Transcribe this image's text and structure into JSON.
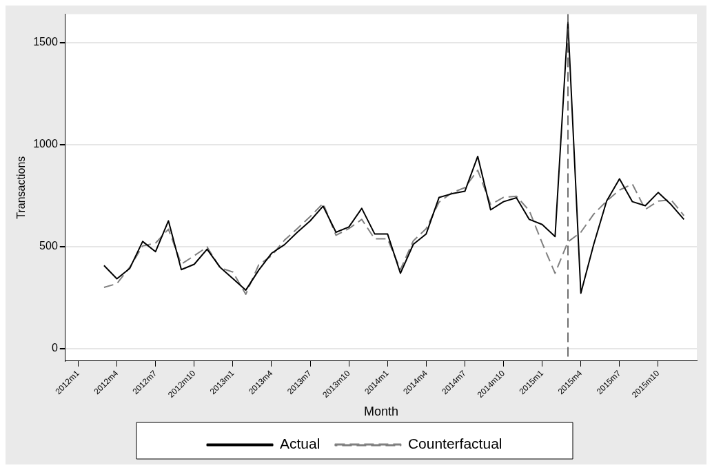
{
  "chart_data": {
    "type": "line",
    "xlabel": "Month",
    "ylabel": "Transactions",
    "x": [
      "2012-03",
      "2012-04",
      "2012-05",
      "2012-06",
      "2012-07",
      "2012-08",
      "2012-09",
      "2012-10",
      "2012-11",
      "2012-12",
      "2013-01",
      "2013-02",
      "2013-03",
      "2013-04",
      "2013-05",
      "2013-06",
      "2013-07",
      "2013-08",
      "2013-09",
      "2013-10",
      "2013-11",
      "2013-12",
      "2014-01",
      "2014-02",
      "2014-03",
      "2014-04",
      "2014-05",
      "2014-06",
      "2014-07",
      "2014-08",
      "2014-09",
      "2014-10",
      "2014-11",
      "2014-12",
      "2015-01",
      "2015-02",
      "2015-03",
      "2015-04",
      "2015-05",
      "2015-06",
      "2015-07",
      "2015-08",
      "2015-09",
      "2015-10",
      "2015-11",
      "2015-12"
    ],
    "series": [
      {
        "name": "Actual",
        "color": "#000000",
        "line_style": "solid",
        "values": [
          408,
          343,
          394,
          526,
          476,
          627,
          388,
          414,
          488,
          400,
          344,
          287,
          385,
          468,
          510,
          571,
          627,
          699,
          571,
          597,
          688,
          563,
          563,
          370,
          512,
          563,
          742,
          760,
          772,
          943,
          681,
          721,
          740,
          634,
          609,
          550,
          1600,
          272,
          512,
          724,
          833,
          721,
          701,
          766,
          707,
          634
        ]
      },
      {
        "name": "Counterfactual",
        "color": "#808080",
        "line_style": "dashed",
        "values": [
          301,
          319,
          400,
          504,
          518,
          586,
          415,
          456,
          499,
          397,
          376,
          267,
          411,
          456,
          532,
          589,
          648,
          713,
          556,
          589,
          634,
          539,
          539,
          388,
          529,
          589,
          719,
          765,
          790,
          875,
          707,
          742,
          748,
          677,
          518,
          370,
          524,
          571,
          660,
          724,
          778,
          807,
          683,
          724,
          730,
          653
        ]
      }
    ],
    "xlim": [
      "2011-12",
      "2016-01"
    ],
    "xticks": [
      {
        "value": "2012-01",
        "label": "2012m1"
      },
      {
        "value": "2012-04",
        "label": "2012m4"
      },
      {
        "value": "2012-07",
        "label": "2012m7"
      },
      {
        "value": "2012-10",
        "label": "2012m10"
      },
      {
        "value": "2013-01",
        "label": "2013m1"
      },
      {
        "value": "2013-04",
        "label": "2013m4"
      },
      {
        "value": "2013-07",
        "label": "2013m7"
      },
      {
        "value": "2013-10",
        "label": "2013m10"
      },
      {
        "value": "2014-01",
        "label": "2014m1"
      },
      {
        "value": "2014-04",
        "label": "2014m4"
      },
      {
        "value": "2014-07",
        "label": "2014m7"
      },
      {
        "value": "2014-10",
        "label": "2014m10"
      },
      {
        "value": "2015-01",
        "label": "2015m1"
      },
      {
        "value": "2015-04",
        "label": "2015m4"
      },
      {
        "value": "2015-07",
        "label": "2015m7"
      },
      {
        "value": "2015-10",
        "label": "2015m10"
      }
    ],
    "ylim": [
      -60,
      1640
    ],
    "yticks": [
      0,
      500,
      1000,
      1500
    ],
    "ref_lines": [
      {
        "axis": "x",
        "value": "2015-03",
        "color": "#404040",
        "line_style": "dashed"
      }
    ],
    "grid": "y",
    "legend": "bottom",
    "marker": "none"
  }
}
